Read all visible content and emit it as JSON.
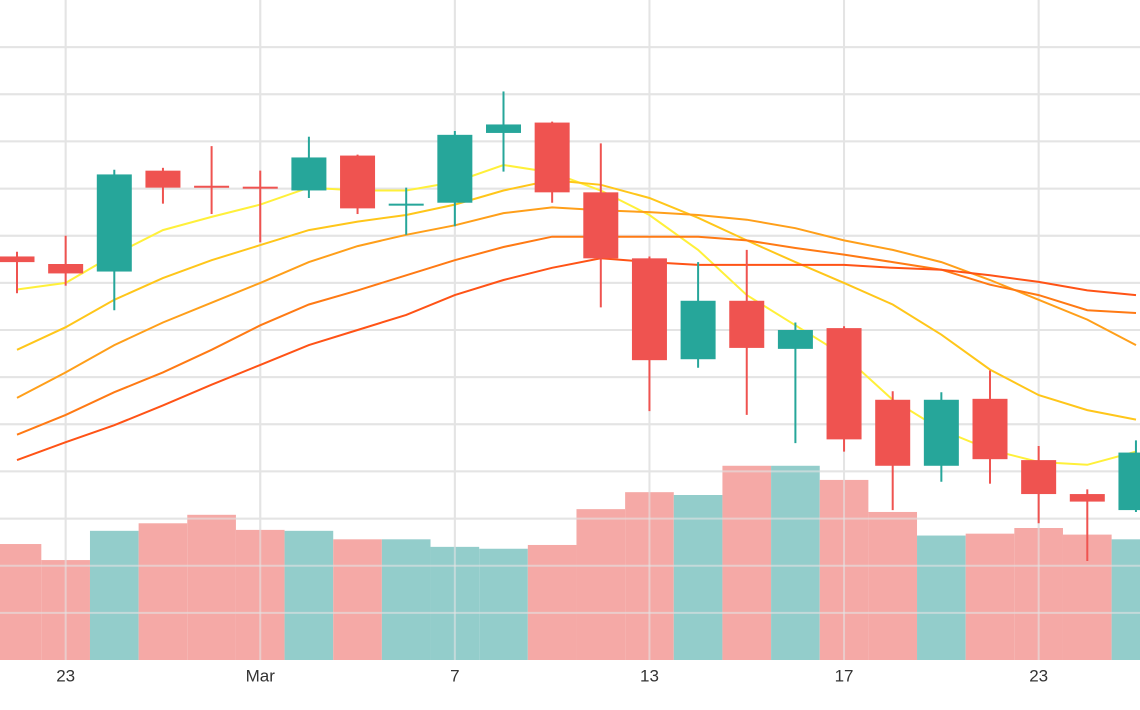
{
  "chart_data": {
    "type": "candlestick",
    "categories": [
      null,
      "23",
      null,
      null,
      null,
      "Mar",
      null,
      null,
      null,
      "7",
      null,
      null,
      null,
      "13",
      null,
      null,
      null,
      "17",
      null,
      null,
      null,
      "23",
      null,
      null
    ],
    "open": [
      428,
      420,
      412,
      519,
      503,
      502,
      498,
      535,
      482,
      485,
      559,
      570,
      496,
      426,
      319,
      381,
      330,
      352,
      276,
      206,
      277,
      212,
      176,
      159
    ],
    "high": [
      433,
      450,
      520,
      522,
      545,
      519,
      555,
      536,
      501,
      561,
      603,
      571,
      548,
      428,
      422,
      435,
      358,
      354,
      285,
      284,
      307,
      227,
      181,
      233
    ],
    "low": [
      389,
      397,
      371,
      484,
      473,
      443,
      490,
      473,
      451,
      460,
      518,
      485,
      374,
      264,
      310,
      260,
      230,
      221,
      159,
      189,
      187,
      145,
      105,
      157
    ],
    "close": [
      422,
      410,
      515,
      501,
      501,
      500,
      533,
      479,
      484,
      557,
      568,
      496,
      426,
      318,
      381,
      331,
      350,
      234,
      206,
      276,
      213,
      176,
      168,
      220
    ],
    "up_color": "#26a69a",
    "down_color": "#ef5350",
    "volume": {
      "axis": "y2",
      "up_color": "#93cdcb",
      "down_color": "#f5a9a6",
      "values": [
        123,
        106,
        137,
        145,
        154,
        138,
        137,
        128,
        128,
        120,
        118,
        122,
        160,
        178,
        175,
        206,
        206,
        191,
        157,
        132,
        134,
        140,
        133,
        128
      ]
    },
    "series": [
      {
        "color": "#fff03a",
        "values": [
          393,
          400,
          430,
          456,
          470,
          483,
          501,
          498,
          498,
          507,
          525,
          517,
          498,
          472,
          435,
          387,
          355,
          323,
          276,
          244,
          223,
          210,
          207,
          221
        ]
      },
      {
        "color": "#ffc61a",
        "values": [
          329,
          353,
          382,
          405,
          424,
          440,
          456,
          465,
          472,
          483,
          498,
          509,
          504,
          490,
          469,
          445,
          422,
          400,
          377,
          345,
          308,
          281,
          265,
          255
        ]
      },
      {
        "color": "#ff9f1a",
        "values": [
          278,
          305,
          334,
          358,
          379,
          400,
          422,
          439,
          451,
          461,
          474,
          480,
          477,
          475,
          472,
          467,
          458,
          445,
          435,
          422,
          403,
          382,
          361,
          334
        ]
      },
      {
        "color": "#ff7a14",
        "values": [
          239,
          260,
          284,
          305,
          329,
          355,
          377,
          392,
          408,
          424,
          438,
          449,
          449,
          449,
          449,
          445,
          437,
          430,
          422,
          414,
          398,
          387,
          371,
          368
        ]
      },
      {
        "color": "#ff5316",
        "values": [
          212,
          231,
          249,
          270,
          292,
          313,
          334,
          350,
          366,
          387,
          403,
          416,
          426,
          422,
          419,
          419,
          419,
          419,
          416,
          414,
          408,
          401,
          392,
          387
        ]
      }
    ],
    "ylim": [
      0,
      700
    ],
    "yticks": [
      50,
      100,
      150,
      200,
      250,
      300,
      350,
      400,
      450,
      500,
      550,
      600,
      650
    ],
    "y2lim": [
      0,
      700
    ],
    "grid": true
  }
}
